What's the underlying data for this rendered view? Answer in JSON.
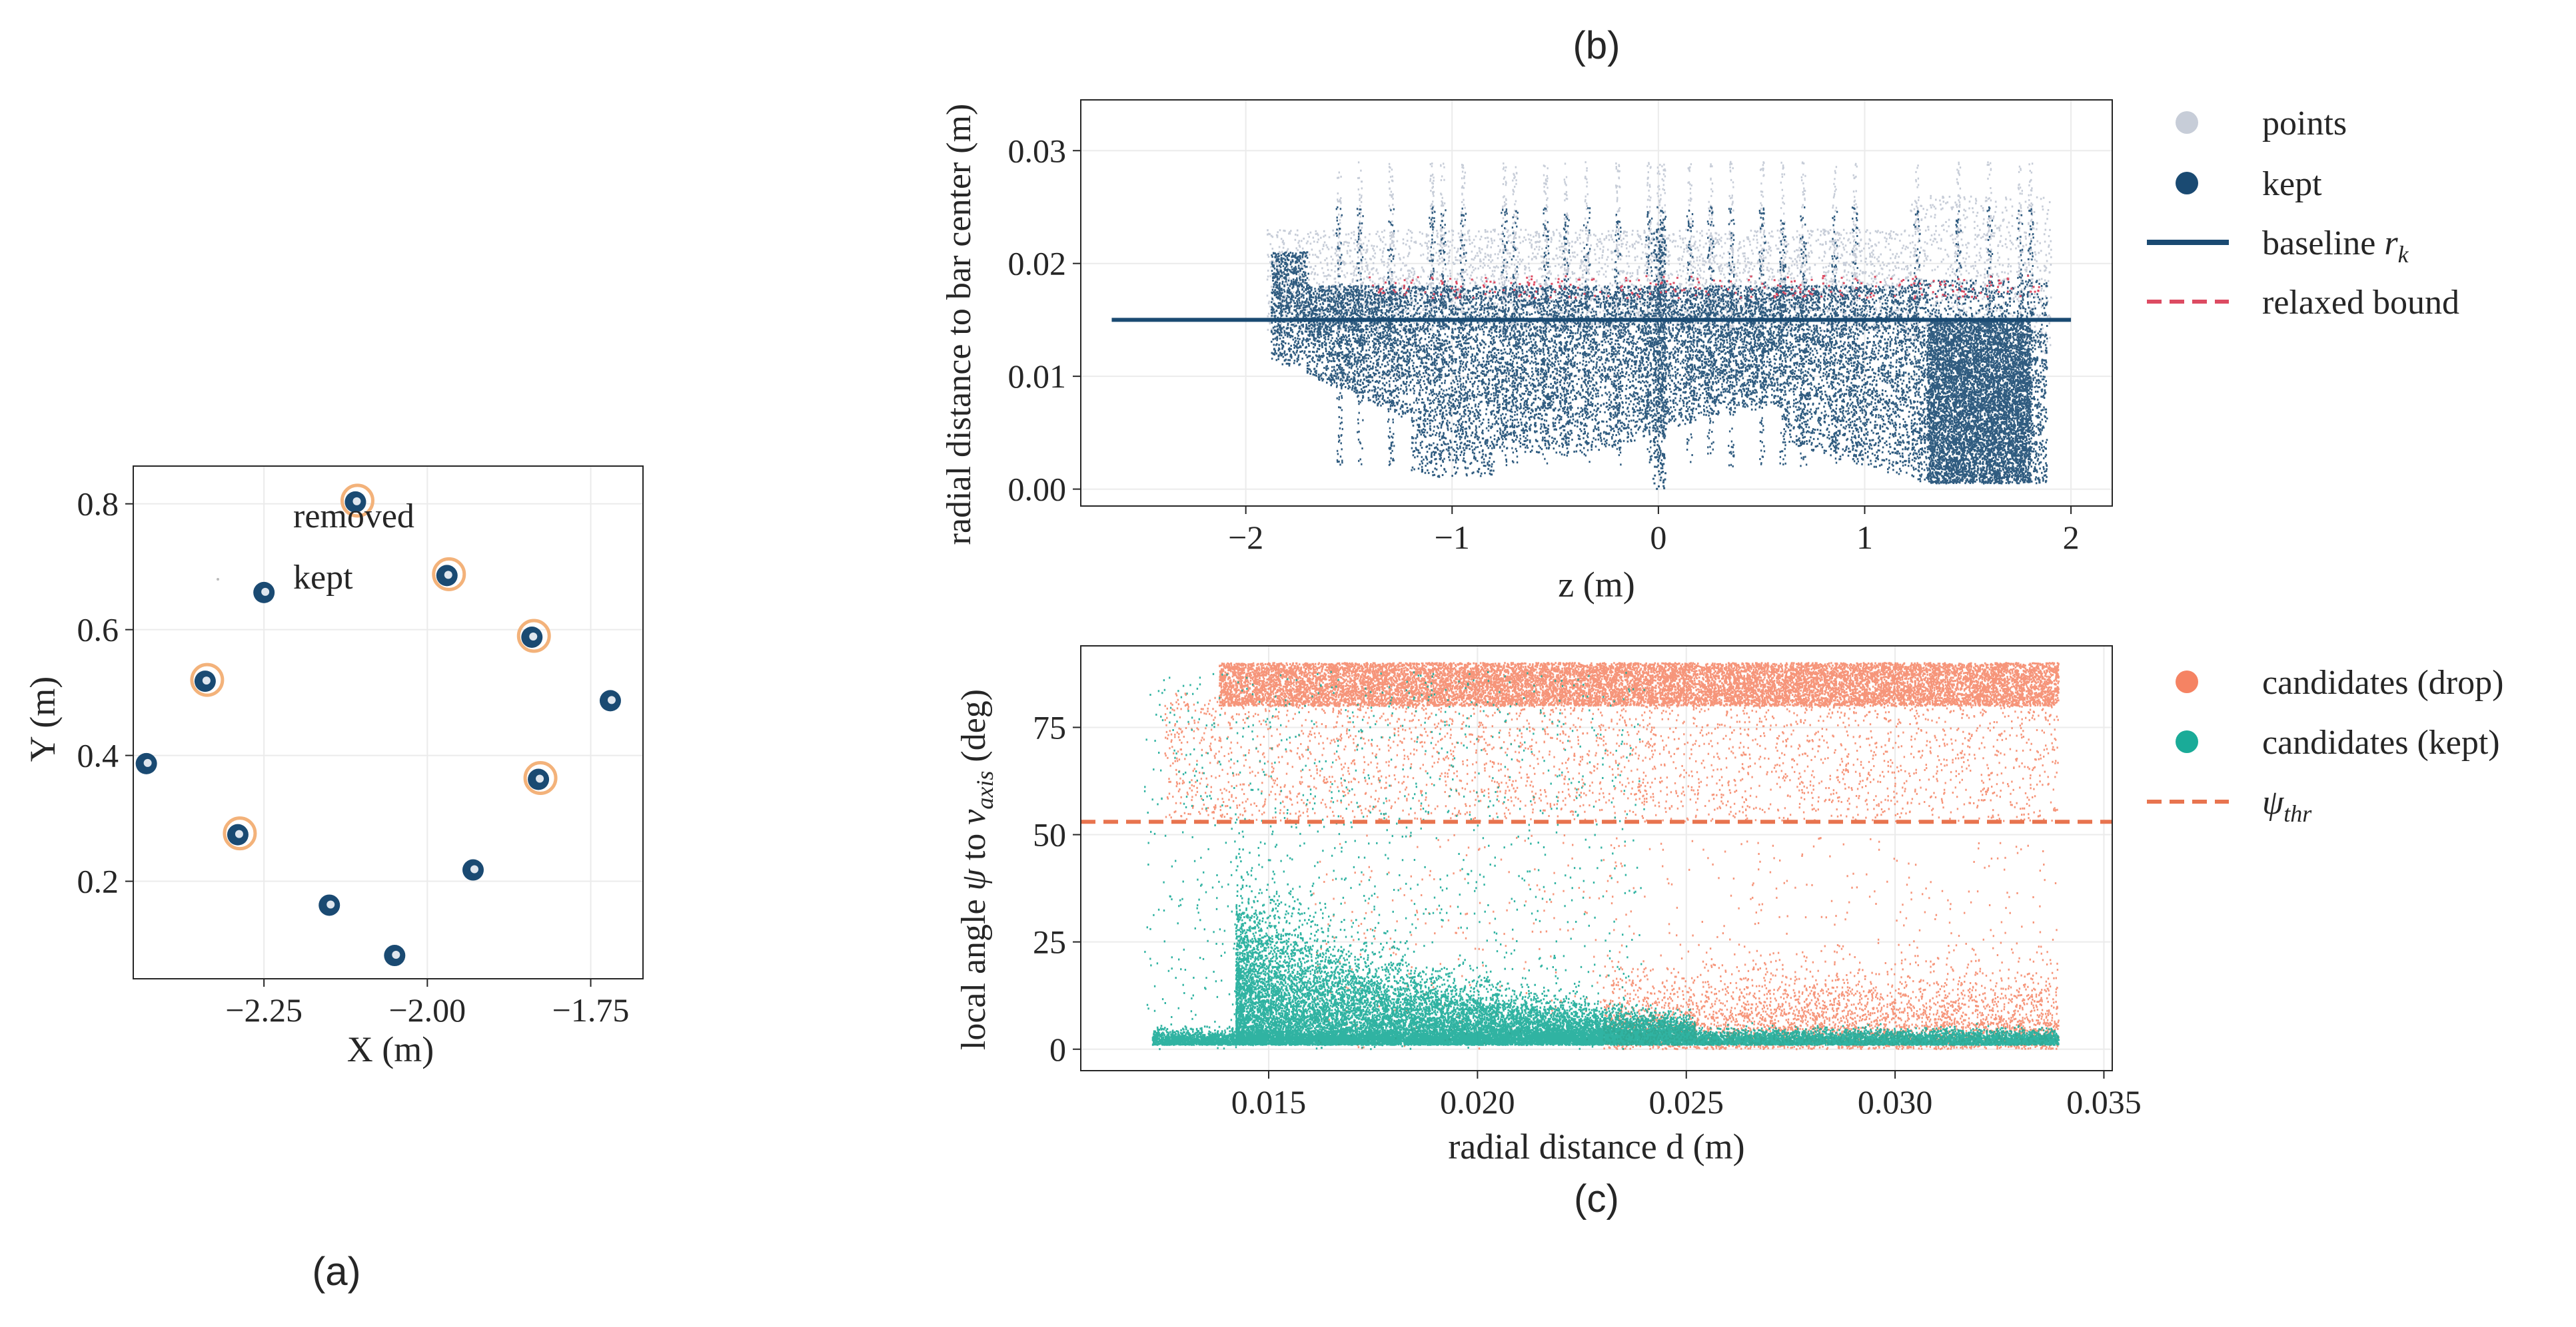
{
  "figure": {
    "label_a": "(a)",
    "label_b": "(b)",
    "label_c": "(c)"
  },
  "colors": {
    "kept_navy": "#1a4a72",
    "points_gray": "#c7cdd8",
    "relaxed_red": "#dd4b62",
    "drop_orange": "#f58363",
    "kept_teal": "#1aab98",
    "threshold_orange": "#e8744f",
    "ring_orange": "#f3b27a",
    "grid": "#ebebeb",
    "axis": "#262626"
  },
  "chart_data": [
    {
      "id": "a",
      "type": "scatter",
      "title": "",
      "xlabel": "X (m)",
      "ylabel": "Y (m)",
      "xlim": [
        -2.45,
        -1.67
      ],
      "ylim": [
        0.045,
        0.86
      ],
      "xticks": [
        -2.25,
        -2.0,
        -1.75
      ],
      "xtick_labels": [
        "−2.25",
        "−2.00",
        "−1.75"
      ],
      "yticks": [
        0.2,
        0.4,
        0.6,
        0.8
      ],
      "ytick_labels": [
        "0.2",
        "0.4",
        "0.6",
        "0.8"
      ],
      "grid": true,
      "legend": [
        "removed",
        "kept"
      ],
      "legend_position": "top-left",
      "series": [
        {
          "name": "kept",
          "points": [
            [
              -2.11,
              0.803
            ],
            [
              -1.97,
              0.686
            ],
            [
              -1.84,
              0.588
            ],
            [
              -1.72,
              0.487
            ],
            [
              -1.83,
              0.362
            ],
            [
              -1.93,
              0.218
            ],
            [
              -2.05,
              0.082
            ],
            [
              -2.15,
              0.162
            ],
            [
              -2.29,
              0.274
            ],
            [
              -2.43,
              0.387
            ],
            [
              -2.34,
              0.518
            ],
            [
              -2.25,
              0.659
            ]
          ]
        },
        {
          "name": "removed",
          "points": [
            [
              -2.11,
              0.803
            ],
            [
              -1.97,
              0.686
            ],
            [
              -1.84,
              0.588
            ],
            [
              -1.83,
              0.362
            ],
            [
              -2.29,
              0.274
            ],
            [
              -2.34,
              0.518
            ]
          ]
        }
      ]
    },
    {
      "id": "b",
      "type": "scatter",
      "title": "",
      "xlabel": "z (m)",
      "ylabel": "radial distance to bar center (m)",
      "xlim": [
        -2.8,
        2.2
      ],
      "ylim": [
        -0.0015,
        0.0345
      ],
      "xticks": [
        -2,
        -1,
        0,
        1,
        2
      ],
      "xtick_labels": [
        "−2",
        "−1",
        "0",
        "1",
        "2"
      ],
      "yticks": [
        0.0,
        0.01,
        0.02,
        0.03
      ],
      "ytick_labels": [
        "0.00",
        "0.01",
        "0.02",
        "0.03"
      ],
      "grid": true,
      "legend": [
        "points",
        "kept",
        "baseline r_k",
        "relaxed bound"
      ],
      "legend_position": "outside-right",
      "baseline_r_k": 0.015,
      "baseline_range": [
        -2.65,
        2.0
      ],
      "relaxed_bound": 0.0175,
      "data_range_z": [
        -1.9,
        1.9
      ],
      "bar_positions_z": [
        -1.55,
        -1.45,
        -1.3,
        -1.1,
        -1.05,
        -0.95,
        -0.75,
        -0.7,
        -0.55,
        -0.45,
        -0.35,
        -0.2,
        -0.05,
        0.0,
        0.02,
        0.15,
        0.25,
        0.35,
        0.5,
        0.6,
        0.7,
        0.85,
        0.95,
        1.25,
        1.45,
        1.6,
        1.75,
        1.8
      ],
      "series": [
        {
          "name": "points"
        },
        {
          "name": "kept"
        },
        {
          "name": "baseline r_k"
        },
        {
          "name": "relaxed bound"
        }
      ]
    },
    {
      "id": "c",
      "type": "scatter",
      "title": "",
      "xlabel": "radial distance d (m)",
      "ylabel": "local angle ψ to v_axis (deg)",
      "xlim": [
        0.0105,
        0.0352
      ],
      "ylim": [
        -5,
        94
      ],
      "xticks": [
        0.015,
        0.02,
        0.025,
        0.03,
        0.035
      ],
      "xtick_labels": [
        "0.015",
        "0.020",
        "0.025",
        "0.030",
        "0.035"
      ],
      "yticks": [
        0,
        25,
        50,
        75
      ],
      "ytick_labels": [
        "0",
        "25",
        "50",
        "75"
      ],
      "grid": true,
      "legend": [
        "candidates (drop)",
        "candidates (kept)",
        "ψ_thr"
      ],
      "legend_position": "outside-right",
      "psi_thr": 53,
      "d_range": [
        0.0118,
        0.0339
      ],
      "series": [
        {
          "name": "candidates (drop)"
        },
        {
          "name": "candidates (kept)"
        },
        {
          "name": "ψ_thr"
        }
      ]
    }
  ],
  "legend_text": {
    "b_points": "points",
    "b_kept": "kept",
    "b_baseline": "baseline ",
    "b_baseline_sym": "r",
    "b_baseline_sub": "k",
    "b_relaxed": "relaxed bound",
    "c_drop": "candidates (drop)",
    "c_kept": "candidates (kept)",
    "c_thr_sym": "ψ",
    "c_thr_sub": "thr",
    "a_removed": "removed",
    "a_kept": "kept"
  },
  "axis_text": {
    "a_x": "X (m)",
    "a_y": "Y (m)",
    "b_x": "z (m)",
    "b_y": "radial distance to bar center (m)",
    "c_x": "radial distance d (m)",
    "c_y_pre": "local angle ",
    "c_y_sym": "ψ",
    "c_y_mid": " to ",
    "c_y_v": "v",
    "c_y_sub": "axis",
    "c_y_post": " (deg)"
  }
}
